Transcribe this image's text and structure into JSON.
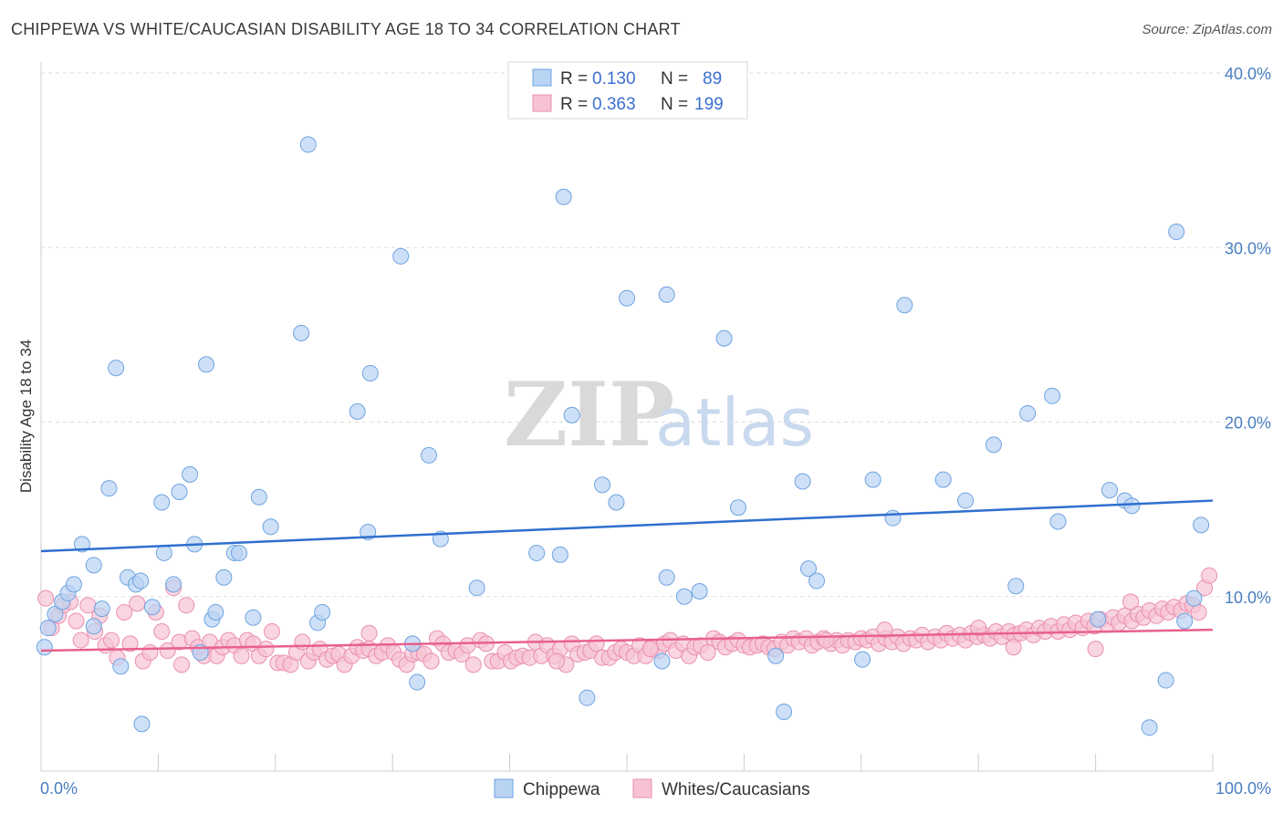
{
  "title": "CHIPPEWA VS WHITE/CAUCASIAN DISABILITY AGE 18 TO 34 CORRELATION CHART",
  "source": "Source: ZipAtlas.com",
  "watermark": {
    "zip": "ZIP",
    "atlas": "atlas"
  },
  "colors": {
    "blue": "#6ea3df",
    "blue_fill": "#b9d3f3",
    "blue_line": "#2f6fcf",
    "pink": "#ea8fb0",
    "pink_fill": "#f7c3d4",
    "pink_line": "#e8608c"
  },
  "legend": {
    "rows": [
      {
        "r_label": "R =",
        "r_value": "0.130",
        "n_label": "N =",
        "n_value": "89"
      },
      {
        "r_label": "R =",
        "r_value": "0.363",
        "n_label": "N =",
        "n_value": "199"
      }
    ]
  },
  "bottom_legend": [
    "Chippewa",
    "Whites/Caucasians"
  ],
  "chart_data": {
    "type": "scatter",
    "ylabel": "Disability Age 18 to 34",
    "xlim": [
      0,
      100
    ],
    "ylim": [
      0,
      40
    ],
    "x_tick_labels": [
      "0.0%",
      "100.0%"
    ],
    "y_ticks": [
      10,
      20,
      30,
      40
    ],
    "y_tick_labels": [
      "10.0%",
      "20.0%",
      "30.0%",
      "40.0%"
    ],
    "grid": "horizontal dashed",
    "legend_position": "top-center",
    "series": [
      {
        "name": "Chippewa",
        "trend": [
          [
            0,
            12.6
          ],
          [
            100,
            15.5
          ]
        ],
        "points": [
          [
            0.3,
            7.1
          ],
          [
            0.6,
            8.2
          ],
          [
            1.2,
            9.0
          ],
          [
            1.8,
            9.7
          ],
          [
            2.3,
            10.2
          ],
          [
            2.8,
            10.7
          ],
          [
            3.5,
            13.0
          ],
          [
            4.5,
            8.3
          ],
          [
            4.5,
            11.8
          ],
          [
            5.2,
            9.3
          ],
          [
            5.8,
            16.2
          ],
          [
            6.4,
            23.1
          ],
          [
            6.8,
            6.0
          ],
          [
            7.4,
            11.1
          ],
          [
            8.1,
            10.7
          ],
          [
            8.6,
            2.7
          ],
          [
            8.5,
            10.9
          ],
          [
            9.5,
            9.4
          ],
          [
            10.3,
            15.4
          ],
          [
            10.5,
            12.5
          ],
          [
            11.3,
            10.7
          ],
          [
            11.8,
            16.0
          ],
          [
            12.7,
            17.0
          ],
          [
            13.1,
            13.0
          ],
          [
            13.6,
            6.8
          ],
          [
            14.1,
            23.3
          ],
          [
            14.6,
            8.7
          ],
          [
            14.9,
            9.1
          ],
          [
            15.6,
            11.1
          ],
          [
            16.5,
            12.5
          ],
          [
            16.9,
            12.5
          ],
          [
            18.1,
            8.8
          ],
          [
            18.6,
            15.7
          ],
          [
            19.6,
            14.0
          ],
          [
            22.2,
            25.1
          ],
          [
            22.8,
            35.9
          ],
          [
            23.6,
            8.5
          ],
          [
            24.0,
            9.1
          ],
          [
            27.0,
            20.6
          ],
          [
            27.9,
            13.7
          ],
          [
            28.1,
            22.8
          ],
          [
            30.7,
            29.5
          ],
          [
            31.7,
            7.3
          ],
          [
            32.1,
            5.1
          ],
          [
            33.1,
            18.1
          ],
          [
            34.1,
            13.3
          ],
          [
            37.2,
            10.5
          ],
          [
            42.3,
            12.5
          ],
          [
            44.3,
            12.4
          ],
          [
            44.6,
            32.9
          ],
          [
            45.3,
            20.4
          ],
          [
            46.6,
            4.2
          ],
          [
            47.9,
            16.4
          ],
          [
            49.1,
            15.4
          ],
          [
            50.0,
            27.1
          ],
          [
            53.0,
            6.3
          ],
          [
            53.4,
            11.1
          ],
          [
            53.4,
            27.3
          ],
          [
            54.9,
            10.0
          ],
          [
            56.2,
            10.3
          ],
          [
            58.3,
            24.8
          ],
          [
            59.5,
            15.1
          ],
          [
            62.7,
            6.6
          ],
          [
            63.4,
            3.4
          ],
          [
            65.5,
            11.6
          ],
          [
            65.0,
            16.6
          ],
          [
            66.2,
            10.9
          ],
          [
            70.1,
            6.4
          ],
          [
            71.0,
            16.7
          ],
          [
            72.7,
            14.5
          ],
          [
            73.7,
            26.7
          ],
          [
            77.0,
            16.7
          ],
          [
            78.9,
            15.5
          ],
          [
            81.3,
            18.7
          ],
          [
            83.2,
            10.6
          ],
          [
            84.2,
            20.5
          ],
          [
            86.3,
            21.5
          ],
          [
            86.8,
            14.3
          ],
          [
            90.2,
            8.7
          ],
          [
            91.2,
            16.1
          ],
          [
            92.5,
            15.5
          ],
          [
            93.1,
            15.2
          ],
          [
            94.6,
            2.5
          ],
          [
            96.0,
            5.2
          ],
          [
            96.9,
            30.9
          ],
          [
            97.6,
            8.6
          ],
          [
            98.4,
            9.9
          ],
          [
            99.0,
            14.1
          ]
        ]
      },
      {
        "name": "Whites/Caucasians",
        "trend": [
          [
            0,
            6.9
          ],
          [
            100,
            8.1
          ]
        ],
        "points": [
          [
            0.4,
            9.9
          ],
          [
            0.9,
            8.2
          ],
          [
            1.5,
            8.9
          ],
          [
            1.9,
            9.5
          ],
          [
            2.5,
            9.7
          ],
          [
            3.0,
            8.6
          ],
          [
            3.4,
            7.5
          ],
          [
            4.0,
            9.5
          ],
          [
            4.6,
            8.0
          ],
          [
            5.0,
            8.9
          ],
          [
            5.5,
            7.2
          ],
          [
            6.0,
            7.5
          ],
          [
            6.5,
            6.5
          ],
          [
            7.1,
            9.1
          ],
          [
            7.6,
            7.3
          ],
          [
            8.2,
            9.6
          ],
          [
            8.7,
            6.3
          ],
          [
            9.3,
            6.8
          ],
          [
            9.8,
            9.1
          ],
          [
            10.3,
            8.0
          ],
          [
            10.8,
            6.9
          ],
          [
            11.3,
            10.5
          ],
          [
            11.8,
            7.4
          ],
          [
            12.4,
            9.5
          ],
          [
            12.9,
            7.6
          ],
          [
            13.4,
            7.1
          ],
          [
            13.9,
            6.6
          ],
          [
            14.4,
            7.4
          ],
          [
            15.0,
            6.6
          ],
          [
            15.5,
            7.1
          ],
          [
            16.0,
            7.5
          ],
          [
            16.5,
            7.2
          ],
          [
            17.1,
            6.6
          ],
          [
            17.6,
            7.5
          ],
          [
            18.1,
            7.3
          ],
          [
            18.6,
            6.6
          ],
          [
            19.2,
            7.0
          ],
          [
            19.7,
            8.0
          ],
          [
            20.2,
            6.2
          ],
          [
            20.7,
            6.2
          ],
          [
            21.3,
            6.1
          ],
          [
            21.8,
            6.8
          ],
          [
            22.3,
            7.4
          ],
          [
            22.8,
            6.3
          ],
          [
            23.3,
            6.8
          ],
          [
            23.8,
            7.0
          ],
          [
            24.4,
            6.4
          ],
          [
            24.9,
            6.6
          ],
          [
            25.4,
            6.7
          ],
          [
            25.9,
            6.1
          ],
          [
            26.5,
            6.6
          ],
          [
            27.0,
            7.1
          ],
          [
            27.5,
            6.9
          ],
          [
            28.0,
            7.0
          ],
          [
            28.6,
            6.6
          ],
          [
            29.1,
            6.8
          ],
          [
            29.6,
            7.2
          ],
          [
            30.1,
            6.8
          ],
          [
            30.6,
            6.4
          ],
          [
            31.2,
            6.1
          ],
          [
            31.7,
            6.7
          ],
          [
            32.2,
            6.8
          ],
          [
            32.7,
            6.7
          ],
          [
            33.3,
            6.3
          ],
          [
            33.8,
            7.6
          ],
          [
            34.3,
            7.3
          ],
          [
            34.8,
            6.8
          ],
          [
            35.4,
            6.9
          ],
          [
            35.9,
            6.7
          ],
          [
            36.4,
            7.2
          ],
          [
            36.9,
            6.1
          ],
          [
            37.5,
            7.5
          ],
          [
            38.0,
            7.3
          ],
          [
            38.5,
            6.3
          ],
          [
            39.0,
            6.3
          ],
          [
            39.6,
            6.8
          ],
          [
            40.1,
            6.3
          ],
          [
            40.6,
            6.5
          ],
          [
            41.1,
            6.6
          ],
          [
            41.7,
            6.5
          ],
          [
            42.2,
            7.4
          ],
          [
            42.7,
            6.6
          ],
          [
            43.2,
            7.2
          ],
          [
            43.8,
            6.6
          ],
          [
            44.3,
            7.0
          ],
          [
            44.8,
            6.1
          ],
          [
            45.3,
            7.3
          ],
          [
            45.8,
            6.7
          ],
          [
            46.4,
            6.8
          ],
          [
            46.9,
            6.9
          ],
          [
            47.4,
            7.3
          ],
          [
            47.9,
            6.5
          ],
          [
            48.5,
            6.5
          ],
          [
            49.0,
            6.8
          ],
          [
            49.5,
            7.0
          ],
          [
            50.0,
            6.8
          ],
          [
            50.6,
            6.6
          ],
          [
            51.1,
            7.2
          ],
          [
            51.6,
            6.6
          ],
          [
            52.1,
            7.1
          ],
          [
            52.7,
            6.9
          ],
          [
            53.2,
            7.3
          ],
          [
            53.7,
            7.5
          ],
          [
            54.2,
            6.9
          ],
          [
            54.8,
            7.3
          ],
          [
            55.3,
            6.6
          ],
          [
            55.8,
            7.1
          ],
          [
            56.3,
            7.2
          ],
          [
            56.9,
            6.8
          ],
          [
            57.4,
            7.6
          ],
          [
            57.9,
            7.4
          ],
          [
            58.4,
            7.1
          ],
          [
            59.0,
            7.3
          ],
          [
            59.5,
            7.5
          ],
          [
            60.0,
            7.2
          ],
          [
            60.5,
            7.1
          ],
          [
            61.1,
            7.2
          ],
          [
            61.6,
            7.3
          ],
          [
            62.1,
            7.1
          ],
          [
            62.6,
            7.0
          ],
          [
            63.2,
            7.4
          ],
          [
            63.7,
            7.2
          ],
          [
            64.2,
            7.6
          ],
          [
            64.7,
            7.4
          ],
          [
            65.3,
            7.6
          ],
          [
            65.8,
            7.2
          ],
          [
            66.3,
            7.4
          ],
          [
            66.8,
            7.6
          ],
          [
            67.4,
            7.3
          ],
          [
            67.9,
            7.5
          ],
          [
            68.4,
            7.2
          ],
          [
            68.9,
            7.5
          ],
          [
            69.5,
            7.4
          ],
          [
            70.0,
            7.6
          ],
          [
            70.5,
            7.5
          ],
          [
            71.0,
            7.7
          ],
          [
            71.5,
            7.3
          ],
          [
            72.1,
            7.6
          ],
          [
            72.6,
            7.4
          ],
          [
            73.1,
            7.7
          ],
          [
            73.6,
            7.3
          ],
          [
            74.2,
            7.6
          ],
          [
            74.7,
            7.5
          ],
          [
            75.2,
            7.8
          ],
          [
            75.7,
            7.4
          ],
          [
            76.3,
            7.7
          ],
          [
            76.8,
            7.5
          ],
          [
            77.3,
            7.9
          ],
          [
            77.8,
            7.6
          ],
          [
            78.4,
            7.8
          ],
          [
            78.9,
            7.5
          ],
          [
            79.4,
            7.9
          ],
          [
            79.9,
            7.7
          ],
          [
            80.5,
            7.8
          ],
          [
            81.0,
            7.6
          ],
          [
            81.5,
            8.0
          ],
          [
            82.0,
            7.7
          ],
          [
            82.6,
            8.0
          ],
          [
            83.1,
            7.8
          ],
          [
            83.6,
            7.9
          ],
          [
            84.1,
            8.1
          ],
          [
            84.7,
            7.8
          ],
          [
            85.2,
            8.2
          ],
          [
            85.7,
            8.0
          ],
          [
            86.2,
            8.3
          ],
          [
            86.8,
            8.0
          ],
          [
            87.3,
            8.4
          ],
          [
            87.8,
            8.1
          ],
          [
            88.3,
            8.5
          ],
          [
            88.9,
            8.2
          ],
          [
            89.4,
            8.6
          ],
          [
            89.9,
            8.3
          ],
          [
            90.4,
            8.7
          ],
          [
            91.0,
            8.4
          ],
          [
            91.5,
            8.8
          ],
          [
            92.0,
            8.5
          ],
          [
            92.5,
            8.9
          ],
          [
            93.1,
            8.6
          ],
          [
            93.6,
            9.0
          ],
          [
            94.1,
            8.8
          ],
          [
            94.6,
            9.2
          ],
          [
            95.2,
            8.9
          ],
          [
            95.7,
            9.3
          ],
          [
            96.2,
            9.1
          ],
          [
            96.7,
            9.4
          ],
          [
            97.3,
            9.2
          ],
          [
            97.8,
            9.6
          ],
          [
            98.3,
            9.5
          ],
          [
            98.8,
            9.1
          ],
          [
            99.3,
            10.5
          ],
          [
            99.7,
            11.2
          ],
          [
            67.0,
            7.5
          ],
          [
            72.0,
            8.1
          ],
          [
            80.0,
            8.2
          ],
          [
            83.0,
            7.1
          ],
          [
            90.0,
            7.0
          ],
          [
            93.0,
            9.7
          ],
          [
            52.0,
            7.0
          ],
          [
            44.0,
            6.3
          ],
          [
            28.0,
            7.9
          ],
          [
            12.0,
            6.1
          ]
        ]
      }
    ]
  }
}
